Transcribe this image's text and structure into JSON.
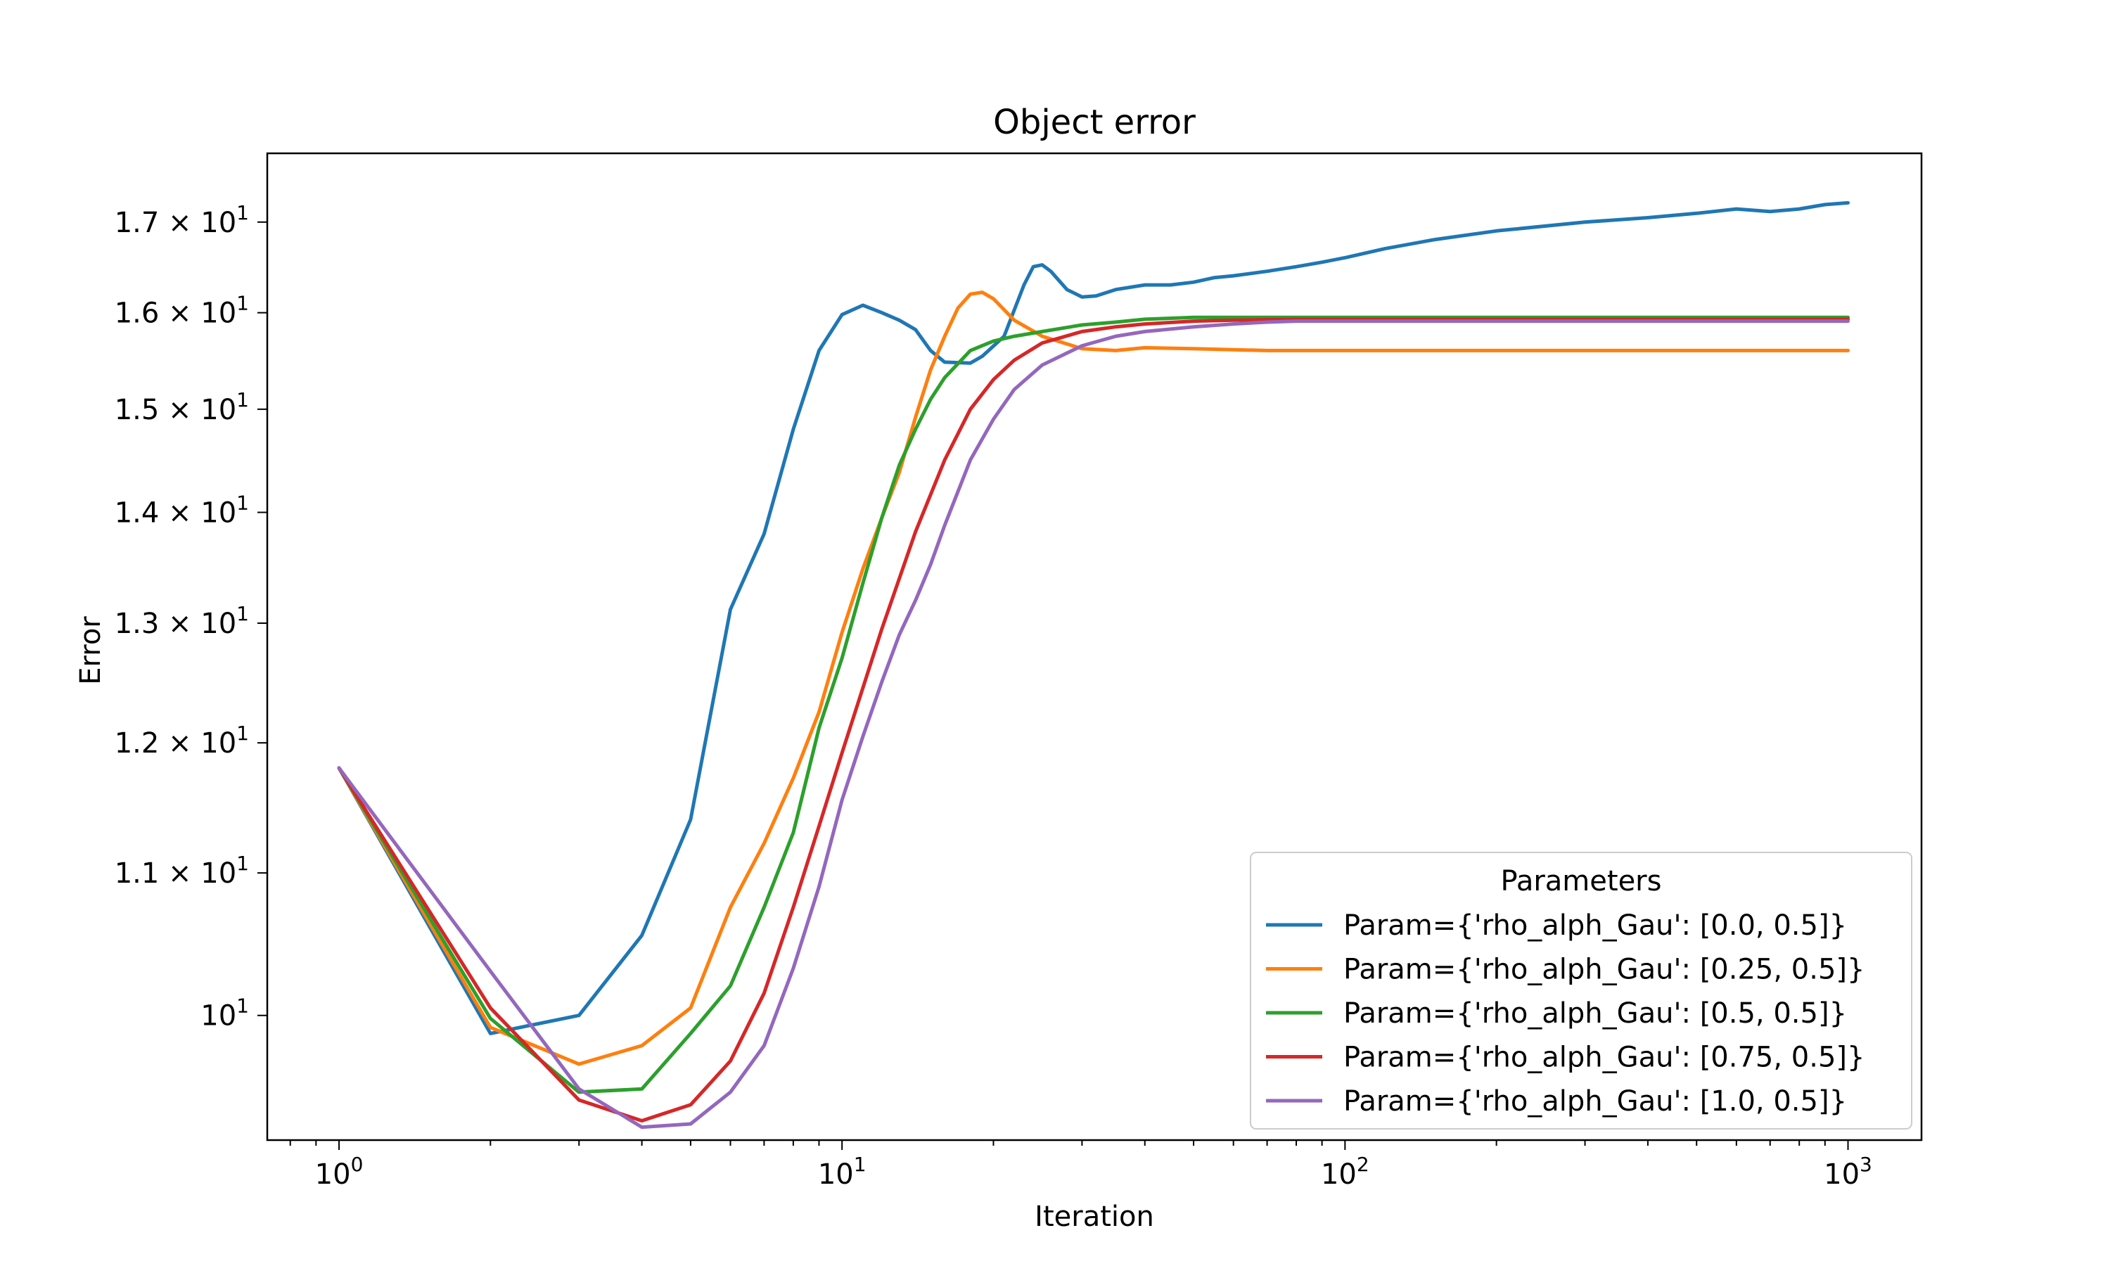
{
  "chart_data": {
    "type": "line",
    "title": "Object error",
    "xlabel": "Iteration",
    "ylabel": "Error",
    "xscale": "log",
    "yscale": "log",
    "xlim": [
      0.72,
      1400
    ],
    "ylim": [
      9.2,
      17.8
    ],
    "x_ticks": [
      {
        "value": 1,
        "base": "10",
        "exp": "0"
      },
      {
        "value": 10,
        "base": "10",
        "exp": "1"
      },
      {
        "value": 100,
        "base": "10",
        "exp": "2"
      },
      {
        "value": 1000,
        "base": "10",
        "exp": "3"
      }
    ],
    "y_ticks": [
      {
        "value": 10,
        "mant": "",
        "base": "10",
        "exp": "1"
      },
      {
        "value": 11,
        "mant": "1.1 × ",
        "base": "10",
        "exp": "1"
      },
      {
        "value": 12,
        "mant": "1.2 × ",
        "base": "10",
        "exp": "1"
      },
      {
        "value": 13,
        "mant": "1.3 × ",
        "base": "10",
        "exp": "1"
      },
      {
        "value": 14,
        "mant": "1.4 × ",
        "base": "10",
        "exp": "1"
      },
      {
        "value": 15,
        "mant": "1.5 × ",
        "base": "10",
        "exp": "1"
      },
      {
        "value": 16,
        "mant": "1.6 × ",
        "base": "10",
        "exp": "1"
      },
      {
        "value": 17,
        "mant": "1.7 × ",
        "base": "10",
        "exp": "1"
      }
    ],
    "grid": false,
    "legend": {
      "title": "Parameters",
      "position": "lower-right"
    },
    "series": [
      {
        "name": "Param={'rho_alph_Gau': [0.0, 0.5]}",
        "color": "#1f77b4",
        "x": [
          1,
          2,
          3,
          4,
          5,
          6,
          7,
          8,
          9,
          10,
          11,
          12,
          13,
          14,
          15,
          16,
          18,
          19,
          21,
          23,
          24,
          25,
          26,
          28,
          30,
          32,
          35,
          40,
          45,
          50,
          55,
          60,
          70,
          80,
          90,
          100,
          120,
          150,
          200,
          300,
          400,
          500,
          600,
          700,
          800,
          900,
          1000
        ],
        "y": [
          11.8,
          9.88,
          10.0,
          10.55,
          11.4,
          13.12,
          13.8,
          14.8,
          15.6,
          15.98,
          16.08,
          16.0,
          15.92,
          15.82,
          15.6,
          15.48,
          15.47,
          15.54,
          15.75,
          16.3,
          16.5,
          16.52,
          16.45,
          16.25,
          16.17,
          16.18,
          16.25,
          16.3,
          16.3,
          16.33,
          16.38,
          16.4,
          16.45,
          16.5,
          16.55,
          16.6,
          16.7,
          16.8,
          16.9,
          17.0,
          17.05,
          17.1,
          17.15,
          17.12,
          17.15,
          17.2,
          17.22
        ]
      },
      {
        "name": "Param={'rho_alph_Gau': [0.25, 0.5]}",
        "color": "#ff7f0e",
        "x": [
          1,
          2,
          3,
          4,
          5,
          6,
          7,
          8,
          9,
          10,
          11,
          12,
          13,
          14,
          15,
          16,
          17,
          18,
          19,
          20,
          22,
          25,
          30,
          35,
          40,
          50,
          70,
          100,
          200,
          500,
          1000
        ],
        "y": [
          11.8,
          9.92,
          9.68,
          9.8,
          10.05,
          10.75,
          11.22,
          11.72,
          12.25,
          12.92,
          13.48,
          13.95,
          14.38,
          14.92,
          15.4,
          15.75,
          16.05,
          16.2,
          16.22,
          16.15,
          15.92,
          15.75,
          15.62,
          15.6,
          15.63,
          15.62,
          15.6,
          15.6,
          15.6,
          15.6,
          15.6
        ]
      },
      {
        "name": "Param={'rho_alph_Gau': [0.5, 0.5]}",
        "color": "#2ca02c",
        "x": [
          1,
          2,
          3,
          4,
          5,
          6,
          7,
          8,
          9,
          10,
          11,
          12,
          13,
          14,
          15,
          16,
          18,
          20,
          22,
          25,
          30,
          35,
          40,
          50,
          60,
          80,
          100,
          200,
          500,
          1000
        ],
        "y": [
          11.8,
          9.98,
          9.5,
          9.52,
          9.88,
          10.2,
          10.75,
          11.3,
          12.12,
          12.7,
          13.35,
          13.95,
          14.45,
          14.8,
          15.1,
          15.32,
          15.6,
          15.7,
          15.75,
          15.8,
          15.87,
          15.9,
          15.93,
          15.95,
          15.95,
          15.95,
          15.95,
          15.95,
          15.95,
          15.95
        ]
      },
      {
        "name": "Param={'rho_alph_Gau': [0.75, 0.5]}",
        "color": "#d62728",
        "x": [
          1,
          2,
          3,
          4,
          5,
          6,
          7,
          8,
          9,
          10,
          12,
          14,
          16,
          18,
          20,
          22,
          25,
          30,
          35,
          40,
          50,
          60,
          80,
          100,
          200,
          500,
          1000
        ],
        "y": [
          11.8,
          10.05,
          9.45,
          9.32,
          9.42,
          9.7,
          10.15,
          10.75,
          11.35,
          11.92,
          12.95,
          13.82,
          14.5,
          15.0,
          15.3,
          15.5,
          15.68,
          15.8,
          15.85,
          15.88,
          15.91,
          15.92,
          15.93,
          15.93,
          15.93,
          15.93,
          15.93
        ]
      },
      {
        "name": "Param={'rho_alph_Gau': [1.0, 0.5]}",
        "color": "#9467bd",
        "x": [
          1,
          2,
          3,
          4,
          5,
          6,
          7,
          8,
          9,
          10,
          11,
          12,
          13,
          14,
          15,
          16,
          18,
          20,
          22,
          25,
          30,
          35,
          40,
          50,
          60,
          70,
          80,
          100,
          200,
          500,
          1000
        ],
        "y": [
          11.8,
          10.3,
          9.52,
          9.28,
          9.3,
          9.5,
          9.8,
          10.32,
          10.9,
          11.55,
          12.05,
          12.5,
          12.9,
          13.2,
          13.52,
          13.88,
          14.5,
          14.9,
          15.2,
          15.45,
          15.65,
          15.75,
          15.8,
          15.85,
          15.88,
          15.9,
          15.91,
          15.91,
          15.91,
          15.91,
          15.91
        ]
      }
    ]
  }
}
